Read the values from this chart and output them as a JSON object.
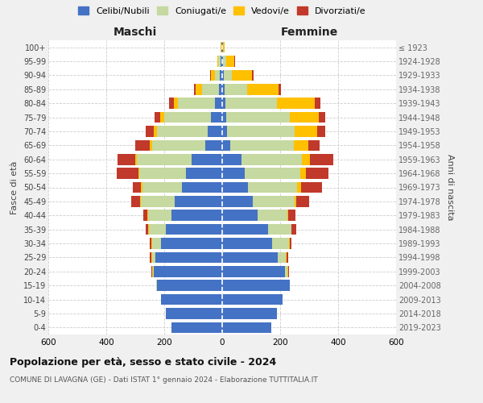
{
  "age_groups": [
    "0-4",
    "5-9",
    "10-14",
    "15-19",
    "20-24",
    "25-29",
    "30-34",
    "35-39",
    "40-44",
    "45-49",
    "50-54",
    "55-59",
    "60-64",
    "65-69",
    "70-74",
    "75-79",
    "80-84",
    "85-89",
    "90-94",
    "95-99",
    "100+"
  ],
  "birth_years": [
    "2019-2023",
    "2014-2018",
    "2009-2013",
    "2004-2008",
    "1999-2003",
    "1994-1998",
    "1989-1993",
    "1984-1988",
    "1979-1983",
    "1974-1978",
    "1969-1973",
    "1964-1968",
    "1959-1963",
    "1954-1958",
    "1949-1953",
    "1944-1948",
    "1939-1943",
    "1934-1938",
    "1929-1933",
    "1924-1928",
    "≤ 1923"
  ],
  "maschi_celibi": [
    175,
    195,
    210,
    225,
    235,
    230,
    210,
    195,
    175,
    165,
    140,
    125,
    105,
    58,
    50,
    38,
    25,
    12,
    8,
    5,
    2
  ],
  "maschi_coniugati": [
    0,
    0,
    0,
    2,
    5,
    12,
    32,
    58,
    80,
    115,
    135,
    160,
    190,
    185,
    175,
    162,
    128,
    58,
    18,
    8,
    2
  ],
  "maschi_vedovi": [
    0,
    0,
    0,
    0,
    2,
    2,
    2,
    2,
    3,
    3,
    5,
    5,
    5,
    8,
    12,
    15,
    15,
    22,
    14,
    5,
    1
  ],
  "maschi_divorziati": [
    0,
    0,
    0,
    0,
    2,
    5,
    5,
    10,
    15,
    30,
    28,
    75,
    62,
    48,
    28,
    18,
    14,
    5,
    2,
    0,
    0
  ],
  "femmine_celibi": [
    170,
    188,
    208,
    232,
    218,
    192,
    172,
    158,
    122,
    105,
    90,
    78,
    68,
    28,
    18,
    14,
    12,
    8,
    6,
    4,
    2
  ],
  "femmine_coniugati": [
    0,
    0,
    0,
    2,
    8,
    28,
    58,
    80,
    102,
    145,
    168,
    192,
    208,
    218,
    232,
    218,
    178,
    78,
    28,
    10,
    2
  ],
  "femmine_vedovi": [
    0,
    0,
    0,
    0,
    2,
    2,
    2,
    2,
    3,
    5,
    15,
    18,
    28,
    52,
    78,
    102,
    130,
    108,
    68,
    28,
    5
  ],
  "femmine_divorziati": [
    0,
    0,
    0,
    0,
    2,
    5,
    8,
    15,
    25,
    45,
    72,
    78,
    80,
    38,
    28,
    22,
    18,
    8,
    5,
    2,
    0
  ],
  "colors": {
    "celibi": "#4472c4",
    "coniugati": "#c5d9a0",
    "vedovi": "#ffc000",
    "divorziati": "#c0392b"
  },
  "title": "Popolazione per età, sesso e stato civile - 2024",
  "subtitle": "COMUNE DI LAVAGNA (GE) - Dati ISTAT 1° gennaio 2024 - Elaborazione TUTTITALIA.IT",
  "xlabel_left": "Maschi",
  "xlabel_right": "Femmine",
  "ylabel_left": "Fasce di età",
  "ylabel_right": "Anni di nascita",
  "xlim": 600,
  "bg_color": "#f0f0f0",
  "plot_bg": "#ffffff",
  "legend_labels": [
    "Celibi/Nubili",
    "Coniugati/e",
    "Vedovi/e",
    "Divorziati/e"
  ]
}
